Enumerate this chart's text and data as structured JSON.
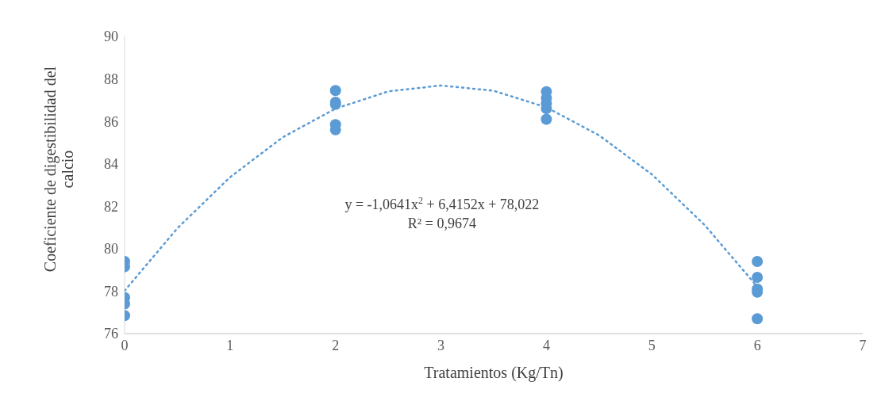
{
  "chart_data": {
    "type": "scatter",
    "xlabel": "Tratamientos (Kg/Tn)",
    "ylabel": "Coeficiente de digestibilidad del calcio",
    "xlim": [
      0,
      7
    ],
    "xticks": [
      0,
      1,
      2,
      3,
      4,
      5,
      6,
      7
    ],
    "ylim": [
      76,
      90
    ],
    "yticks": [
      76,
      78,
      80,
      82,
      84,
      86,
      88,
      90
    ],
    "grid": false,
    "legend": false,
    "series": [
      {
        "color": "#5b9bd5",
        "marker": "circle",
        "x": [
          0,
          0,
          0,
          0,
          0,
          2,
          2,
          2,
          2,
          2,
          4,
          4,
          4,
          4,
          4,
          6,
          6,
          6,
          6,
          6
        ],
        "values": [
          79.4,
          79.15,
          77.7,
          77.4,
          76.85,
          87.45,
          86.9,
          86.8,
          85.85,
          85.6,
          87.4,
          87.1,
          86.85,
          86.6,
          86.1,
          79.4,
          78.65,
          78.1,
          77.95,
          76.7
        ]
      },
      {
        "type": "line",
        "color": "#5b9bd5",
        "line_style": "dotted",
        "marker": "none",
        "x": [
          0,
          0.5,
          1,
          1.5,
          2,
          2.5,
          3,
          3.5,
          4,
          4.5,
          5,
          5.5,
          6
        ],
        "values": [
          78.02,
          80.96,
          83.37,
          85.25,
          86.6,
          87.41,
          87.69,
          87.44,
          86.66,
          85.34,
          83.5,
          81.12,
          78.21
        ]
      }
    ],
    "annotations": [
      "y = -1,0641x$^{2}$ + 6,4152x + 78,022",
      "R² = 0,9674"
    ]
  }
}
